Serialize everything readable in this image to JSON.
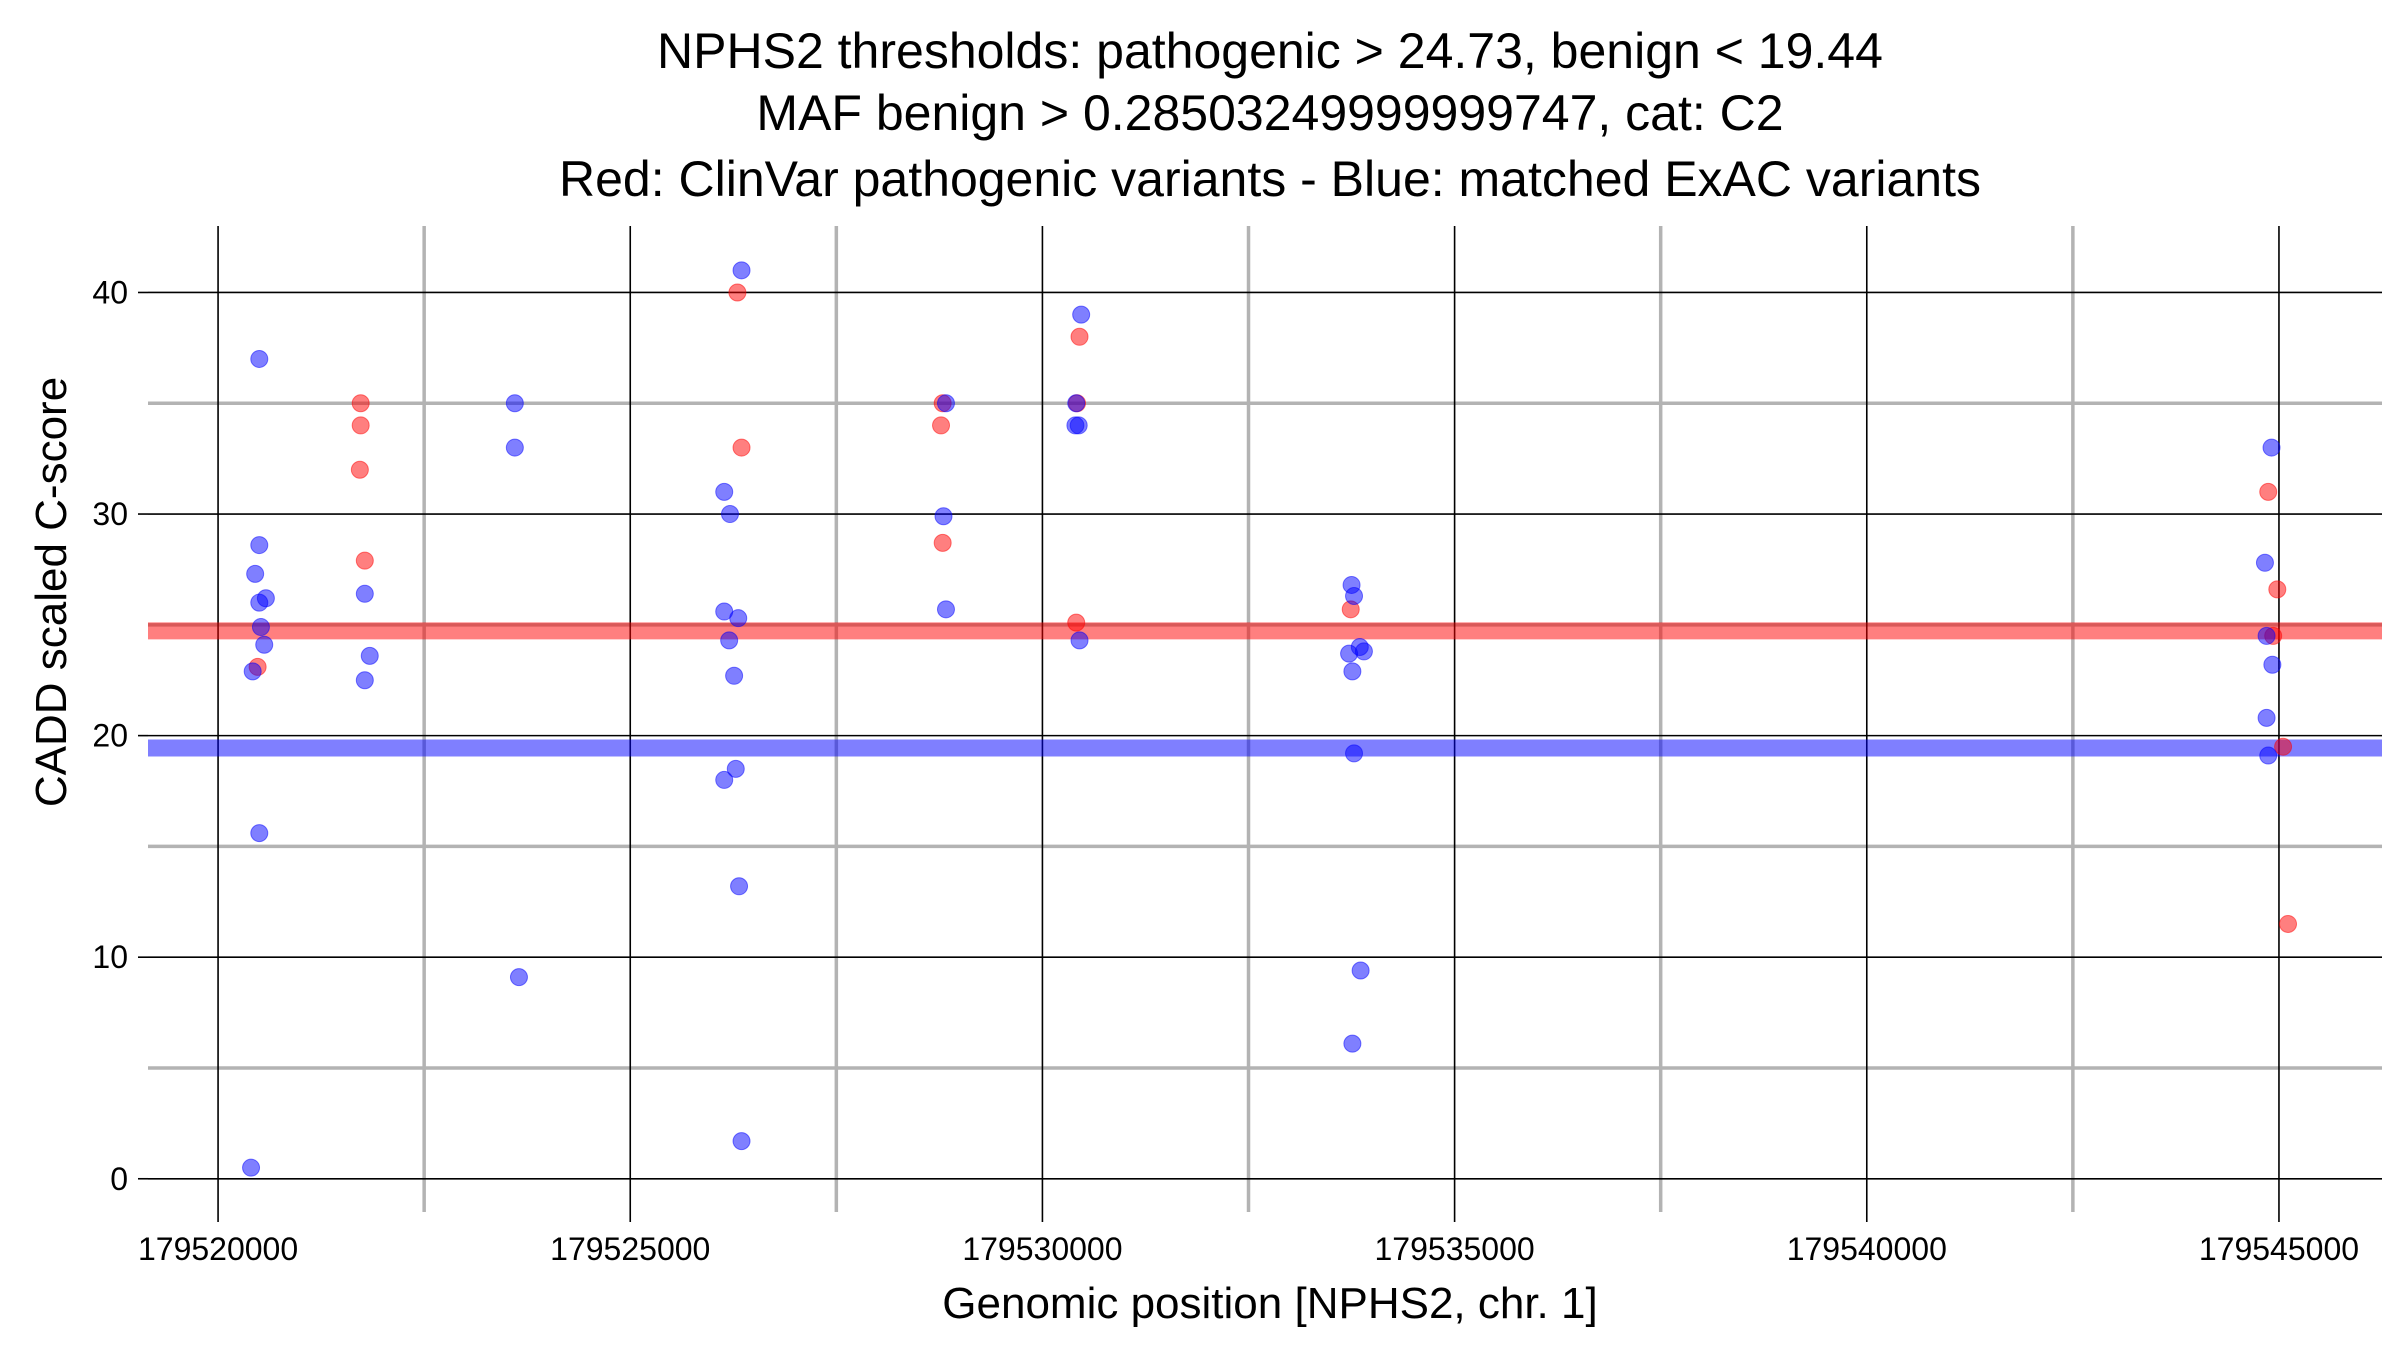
{
  "chart_data": {
    "type": "scatter",
    "title_lines": [
      "NPHS2 thresholds: pathogenic > 24.73, benign < 19.44",
      "MAF benign > 0.28503249999999747, cat: C2",
      "Red: ClinVar pathogenic variants - Blue: matched ExAC variants"
    ],
    "xlabel": "Genomic position [NPHS2, chr. 1]",
    "ylabel": "CADD scaled C-score",
    "xlim": [
      179519150,
      179546250
    ],
    "ylim": [
      -1.5,
      43
    ],
    "x_ticks": [
      179520000,
      179525000,
      179530000,
      179535000,
      179540000,
      179545000
    ],
    "x_tick_labels": [
      "179520000",
      "179525000",
      "179530000",
      "179535000",
      "179540000",
      "179545000"
    ],
    "x_minor_ticks": [
      179522500,
      179527500,
      179532500,
      179537500,
      179542500
    ],
    "y_ticks": [
      0,
      10,
      20,
      30,
      40
    ],
    "y_tick_labels": [
      "0",
      "10",
      "20",
      "30",
      "40"
    ],
    "y_minor_ticks": [
      5,
      15,
      25,
      35
    ],
    "grid": true,
    "thresholds": [
      {
        "kind": "pathogenic",
        "y": 24.73,
        "color": "#ff0000"
      },
      {
        "kind": "benign",
        "y": 19.44,
        "color": "#0000ff"
      }
    ],
    "series": [
      {
        "color": "#ff0000",
        "points": [
          [
            179520480,
            23.1
          ],
          [
            179521730,
            35.0
          ],
          [
            179521730,
            34.0
          ],
          [
            179521720,
            32.0
          ],
          [
            179521780,
            27.9
          ],
          [
            179526300,
            40.0
          ],
          [
            179526350,
            33.0
          ],
          [
            179528790,
            35.0
          ],
          [
            179528770,
            34.0
          ],
          [
            179528790,
            28.7
          ],
          [
            179530420,
            35.0
          ],
          [
            179530450,
            38.0
          ],
          [
            179530410,
            25.1
          ],
          [
            179533740,
            25.7
          ],
          [
            179544870,
            31.0
          ],
          [
            179544980,
            26.6
          ],
          [
            179545050,
            19.5
          ],
          [
            179545110,
            11.5
          ],
          [
            179544930,
            24.5
          ]
        ]
      },
      {
        "color": "#0000ff",
        "points": [
          [
            179520500,
            37.0
          ],
          [
            179520500,
            28.6
          ],
          [
            179520450,
            27.3
          ],
          [
            179520500,
            26.0
          ],
          [
            179520580,
            26.2
          ],
          [
            179520520,
            24.9
          ],
          [
            179520560,
            24.1
          ],
          [
            179520420,
            22.9
          ],
          [
            179520500,
            15.6
          ],
          [
            179520400,
            0.5
          ],
          [
            179521780,
            26.4
          ],
          [
            179521840,
            23.6
          ],
          [
            179521780,
            22.5
          ],
          [
            179523600,
            35.0
          ],
          [
            179523600,
            33.0
          ],
          [
            179523650,
            9.1
          ],
          [
            179526350,
            41.0
          ],
          [
            179526140,
            31.0
          ],
          [
            179526210,
            30.0
          ],
          [
            179526140,
            25.6
          ],
          [
            179526310,
            25.3
          ],
          [
            179526200,
            24.3
          ],
          [
            179526260,
            22.7
          ],
          [
            179526280,
            18.5
          ],
          [
            179526140,
            18.0
          ],
          [
            179526320,
            13.2
          ],
          [
            179526350,
            1.7
          ],
          [
            179528830,
            35.0
          ],
          [
            179528800,
            29.9
          ],
          [
            179528830,
            25.7
          ],
          [
            179530470,
            39.0
          ],
          [
            179530410,
            35.0
          ],
          [
            179530400,
            34.0
          ],
          [
            179530440,
            34.0
          ],
          [
            179530450,
            24.3
          ],
          [
            179533750,
            26.8
          ],
          [
            179533780,
            26.3
          ],
          [
            179533850,
            24.0
          ],
          [
            179533720,
            23.7
          ],
          [
            179533900,
            23.8
          ],
          [
            179533760,
            22.9
          ],
          [
            179533780,
            19.2
          ],
          [
            179533860,
            9.4
          ],
          [
            179533760,
            6.1
          ],
          [
            179544910,
            33.0
          ],
          [
            179544830,
            27.8
          ],
          [
            179544850,
            24.5
          ],
          [
            179544920,
            23.2
          ],
          [
            179544850,
            20.8
          ],
          [
            179544870,
            19.1
          ]
        ]
      }
    ]
  }
}
